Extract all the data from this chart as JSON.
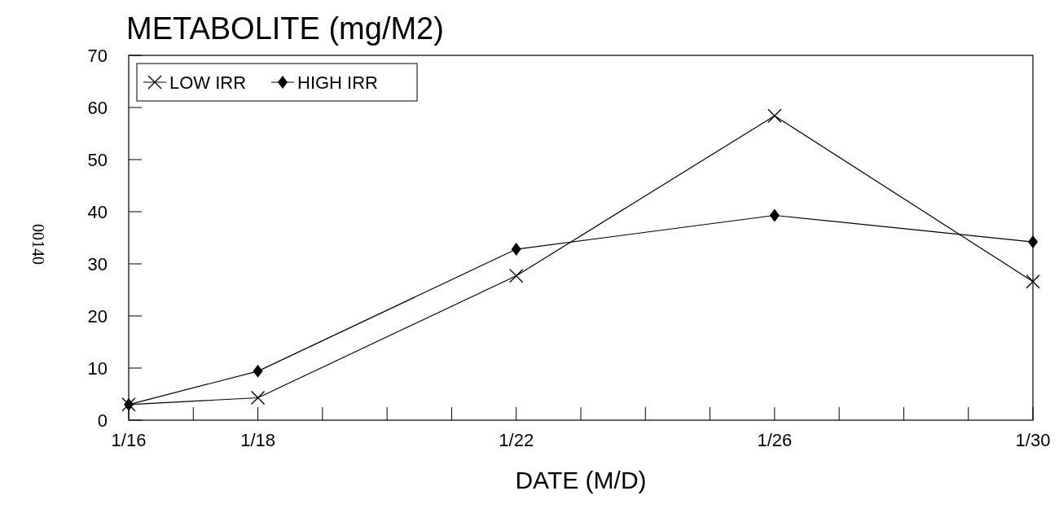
{
  "chart_data": {
    "type": "line",
    "title": "METABOLITE (mg/M2)",
    "xlabel": "DATE (M/D)",
    "x": [
      "--01-16",
      "--01-18",
      "--01-22",
      "--01-26",
      "--01-30"
    ],
    "series": [
      {
        "name": "LOW IRR",
        "color": "#000000",
        "marker": "cross",
        "values": [
          3,
          4.3,
          27.7,
          58.4,
          26.6
        ]
      },
      {
        "name": "HIGH IRR",
        "color": "#000000",
        "marker": "diamond",
        "values": [
          3,
          9.4,
          32.8,
          39.3,
          34.2
        ]
      }
    ],
    "xlim": [
      "--01-16",
      "--01-30"
    ],
    "xticks": [
      {
        "value": "--01-16",
        "label": "1/16"
      },
      {
        "value": "--01-17",
        "label": null
      },
      {
        "value": "--01-18",
        "label": "1/18"
      },
      {
        "value": "--01-19",
        "label": null
      },
      {
        "value": "--01-20",
        "label": null
      },
      {
        "value": "--01-21",
        "label": null
      },
      {
        "value": "--01-22",
        "label": "1/22"
      },
      {
        "value": "--01-23",
        "label": null
      },
      {
        "value": "--01-24",
        "label": null
      },
      {
        "value": "--01-25",
        "label": null
      },
      {
        "value": "--01-26",
        "label": "1/26"
      },
      {
        "value": "--01-27",
        "label": null
      },
      {
        "value": "--01-28",
        "label": null
      },
      {
        "value": "--01-29",
        "label": null
      },
      {
        "value": "--01-30",
        "label": "1/30"
      }
    ],
    "ylim": [
      0,
      70
    ],
    "yticks": [
      0,
      10,
      20,
      30,
      40,
      50,
      60,
      70
    ],
    "grid": false,
    "legend": "top left",
    "line_style": "solid",
    "annotations": [
      "00140"
    ]
  }
}
